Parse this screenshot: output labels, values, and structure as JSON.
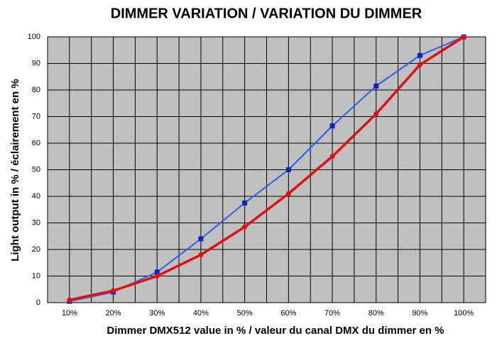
{
  "chart_data": {
    "type": "line",
    "title": "DIMMER VARIATION / VARIATION DU DIMMER",
    "x_label": "Dimmer DMX512 value in % / valeur du canal DMX du dimmer en %",
    "y_label": "Light output in % / éclairement en %",
    "categories": [
      "10%",
      "20%",
      "30%",
      "40%",
      "50%",
      "60%",
      "70%",
      "80%",
      "90%",
      "100%"
    ],
    "series": [
      {
        "color": "#2a5ff0",
        "values": [
          0.5,
          4,
          11.5,
          24,
          37.5,
          50,
          66.5,
          81.5,
          93,
          100
        ]
      },
      {
        "color": "#e01010",
        "values": [
          1,
          4.5,
          10,
          18,
          28.5,
          41,
          55,
          71,
          89.5,
          100
        ]
      }
    ],
    "ylim": [
      0,
      100
    ],
    "yticks": [
      0,
      10,
      20,
      30,
      40,
      50,
      60,
      70,
      80,
      90,
      100
    ],
    "grid": true
  }
}
